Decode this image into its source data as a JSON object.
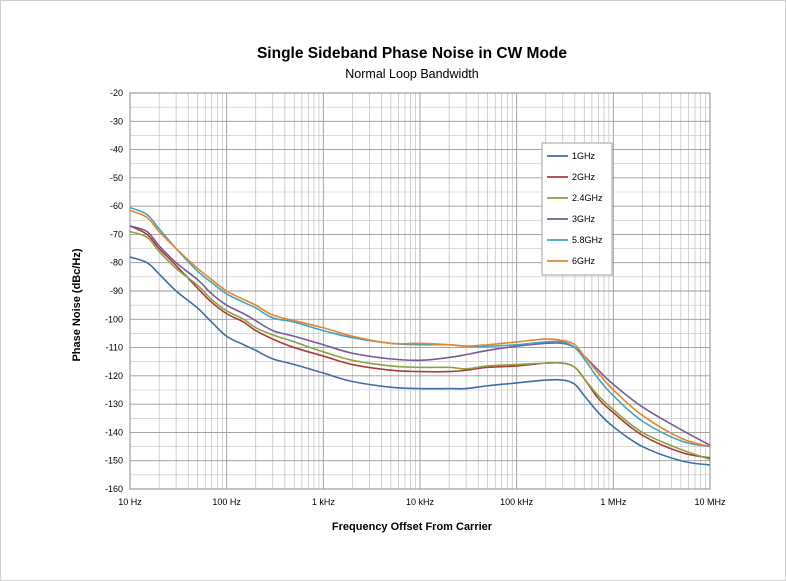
{
  "chart_data": {
    "type": "line",
    "title": "Single Sideband Phase Noise in CW Mode",
    "subtitle": "Normal Loop Bandwidth",
    "xlabel": "Frequency Offset From Carrier",
    "ylabel": "Phase Noise (dBc/Hz)",
    "x_scale": "log",
    "xlim": [
      10,
      10000000
    ],
    "ylim": [
      -160,
      -20
    ],
    "grid": true,
    "legend_position": "top-right",
    "x_ticks": [
      {
        "value": 10,
        "label": "10 Hz"
      },
      {
        "value": 100,
        "label": "100 Hz"
      },
      {
        "value": 1000,
        "label": "1 kHz"
      },
      {
        "value": 10000,
        "label": "10 kHz"
      },
      {
        "value": 100000,
        "label": "100 kHz"
      },
      {
        "value": 1000000,
        "label": "1 MHz"
      },
      {
        "value": 10000000,
        "label": "10 MHz"
      }
    ],
    "y_ticks": [
      "-20",
      "-30",
      "-40",
      "-50",
      "-60",
      "-70",
      "-80",
      "-90",
      "-100",
      "-110",
      "-120",
      "-130",
      "-140",
      "-150",
      "-160"
    ],
    "series": [
      {
        "name": "1GHz",
        "color": "#3e6fa8",
        "x": [
          10,
          15,
          20,
          30,
          50,
          70,
          100,
          150,
          200,
          300,
          500,
          1000,
          2000,
          5000,
          10000,
          20000,
          30000,
          50000,
          100000,
          200000,
          300000,
          400000,
          500000,
          700000,
          1000000,
          2000000,
          5000000,
          10000000
        ],
        "y": [
          -78,
          -80,
          -84,
          -90,
          -96,
          -101,
          -106,
          -109,
          -111,
          -114,
          -116,
          -119,
          -122,
          -124,
          -124.5,
          -124.5,
          -124.5,
          -123.5,
          -122.5,
          -121.5,
          -121.5,
          -123,
          -127,
          -133,
          -138,
          -145,
          -150,
          -151.5
        ]
      },
      {
        "name": "2GHz",
        "color": "#b03a3a",
        "x": [
          10,
          15,
          20,
          30,
          50,
          70,
          100,
          150,
          200,
          300,
          500,
          1000,
          2000,
          5000,
          10000,
          20000,
          30000,
          50000,
          100000,
          200000,
          300000,
          400000,
          500000,
          700000,
          1000000,
          2000000,
          5000000,
          10000000
        ],
        "y": [
          -67,
          -70,
          -75,
          -81,
          -89,
          -94,
          -98,
          -101,
          -104,
          -107,
          -110,
          -113,
          -116,
          -118,
          -118.5,
          -118.5,
          -118,
          -117,
          -116.5,
          -115.5,
          -115.5,
          -117,
          -121,
          -128,
          -133,
          -141,
          -147,
          -149
        ]
      },
      {
        "name": "2.4GHz",
        "color": "#8aa340",
        "x": [
          10,
          15,
          20,
          30,
          50,
          70,
          100,
          150,
          200,
          300,
          500,
          1000,
          2000,
          5000,
          10000,
          20000,
          30000,
          50000,
          100000,
          200000,
          300000,
          400000,
          500000,
          700000,
          1000000,
          2000000,
          5000000,
          10000000
        ],
        "y": [
          -69,
          -71,
          -76,
          -82,
          -88,
          -93,
          -97,
          -100,
          -103,
          -105.5,
          -108,
          -111.5,
          -114.5,
          -116.5,
          -117,
          -117,
          -117.5,
          -116.5,
          -116,
          -115.5,
          -115.5,
          -117,
          -121,
          -127,
          -132,
          -140,
          -146,
          -149.5
        ]
      },
      {
        "name": "3GHz",
        "color": "#7a5a9a",
        "x": [
          10,
          15,
          20,
          30,
          50,
          70,
          100,
          150,
          200,
          300,
          500,
          1000,
          2000,
          5000,
          10000,
          20000,
          30000,
          50000,
          100000,
          200000,
          300000,
          400000,
          500000,
          700000,
          1000000,
          2000000,
          5000000,
          10000000
        ],
        "y": [
          -67,
          -69,
          -74,
          -80,
          -86,
          -91,
          -95,
          -98,
          -100.5,
          -104,
          -106,
          -109,
          -112,
          -114,
          -114.5,
          -113.5,
          -112.5,
          -111,
          -109.5,
          -108.5,
          -108.5,
          -110,
          -113,
          -118,
          -123,
          -131,
          -139,
          -144.5
        ]
      },
      {
        "name": "5.8GHz",
        "color": "#3fa6c0",
        "x": [
          10,
          15,
          20,
          30,
          50,
          70,
          100,
          150,
          200,
          300,
          500,
          1000,
          2000,
          5000,
          10000,
          20000,
          30000,
          50000,
          100000,
          200000,
          300000,
          400000,
          500000,
          700000,
          1000000,
          2000000,
          5000000,
          10000000
        ],
        "y": [
          -60.5,
          -63,
          -68,
          -75,
          -83,
          -87,
          -91,
          -94,
          -96,
          -99.5,
          -101,
          -104,
          -106.5,
          -108.5,
          -109,
          -109,
          -109.5,
          -109.5,
          -109,
          -108,
          -108,
          -110,
          -114,
          -121,
          -127,
          -136,
          -143,
          -145
        ]
      },
      {
        "name": "6GHz",
        "color": "#e8842a",
        "x": [
          10,
          15,
          20,
          30,
          50,
          70,
          100,
          150,
          200,
          300,
          500,
          1000,
          2000,
          5000,
          10000,
          20000,
          30000,
          50000,
          100000,
          200000,
          300000,
          400000,
          500000,
          700000,
          1000000,
          2000000,
          5000000,
          10000000
        ],
        "y": [
          -61.5,
          -64,
          -69,
          -75,
          -82,
          -86,
          -90,
          -93,
          -95,
          -98.5,
          -100.5,
          -103,
          -106,
          -108.5,
          -108.5,
          -109,
          -109.5,
          -109,
          -108,
          -107,
          -107.5,
          -109,
          -113,
          -119,
          -125,
          -134,
          -142,
          -145
        ]
      }
    ]
  }
}
